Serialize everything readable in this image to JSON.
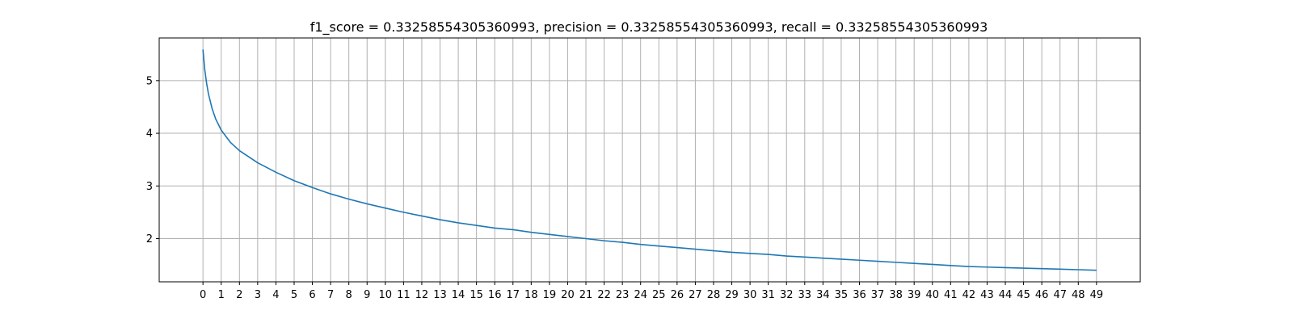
{
  "chart_data": {
    "type": "line",
    "title": "f1_score = 0.33258554305360993, precision = 0.33258554305360993, recall = 0.33258554305360993",
    "xlabel": "",
    "ylabel": "",
    "xlim": [
      -2.4,
      51.4
    ],
    "ylim": [
      1.18,
      5.81
    ],
    "x_ticks": [
      0,
      1,
      2,
      3,
      4,
      5,
      6,
      7,
      8,
      9,
      10,
      11,
      12,
      13,
      14,
      15,
      16,
      17,
      18,
      19,
      20,
      21,
      22,
      23,
      24,
      25,
      26,
      27,
      28,
      29,
      30,
      31,
      32,
      33,
      34,
      35,
      36,
      37,
      38,
      39,
      40,
      41,
      42,
      43,
      44,
      45,
      46,
      47,
      48,
      49
    ],
    "y_ticks": [
      2,
      3,
      4,
      5
    ],
    "grid": true,
    "colors": {
      "line": "#1f77b4",
      "grid": "#b0b0b0"
    },
    "series": [
      {
        "x": [
          0,
          0.1,
          0.2,
          0.3,
          0.5,
          0.7,
          1,
          1.5,
          2,
          3,
          4,
          5,
          6,
          7,
          8,
          9,
          10,
          11,
          12,
          13,
          14,
          15,
          16,
          17,
          18,
          19,
          20,
          21,
          22,
          23,
          24,
          25,
          26,
          27,
          28,
          29,
          30,
          31,
          32,
          33,
          34,
          35,
          36,
          37,
          38,
          39,
          40,
          41,
          42,
          43,
          44,
          45,
          46,
          47,
          48,
          49
        ],
        "values": [
          5.59,
          5.2,
          4.95,
          4.75,
          4.47,
          4.27,
          4.06,
          3.83,
          3.67,
          3.44,
          3.26,
          3.1,
          2.97,
          2.85,
          2.75,
          2.66,
          2.58,
          2.5,
          2.43,
          2.36,
          2.3,
          2.25,
          2.2,
          2.17,
          2.12,
          2.08,
          2.04,
          2.0,
          1.96,
          1.93,
          1.89,
          1.86,
          1.83,
          1.8,
          1.77,
          1.74,
          1.72,
          1.7,
          1.67,
          1.65,
          1.63,
          1.61,
          1.59,
          1.57,
          1.55,
          1.53,
          1.51,
          1.49,
          1.47,
          1.46,
          1.45,
          1.44,
          1.43,
          1.42,
          1.41,
          1.4
        ]
      }
    ]
  }
}
